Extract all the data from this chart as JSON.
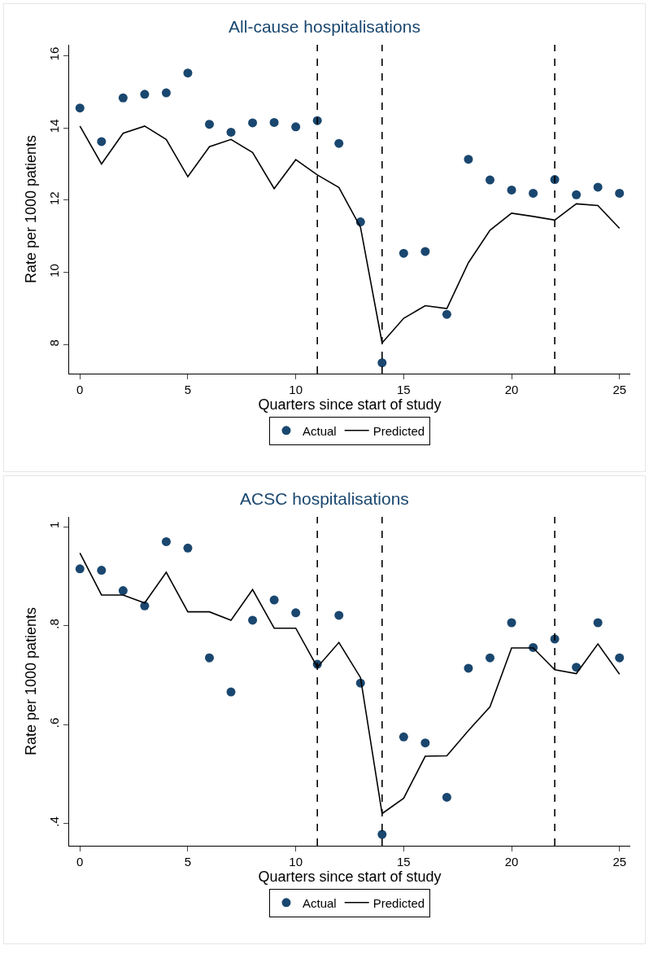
{
  "chart_data": [
    {
      "type": "scatter",
      "title": "All-cause hospitalisations",
      "xlabel": "Quarters since start of study",
      "ylabel": "Rate per 1000 patients",
      "x": [
        0,
        1,
        2,
        3,
        4,
        5,
        6,
        7,
        8,
        9,
        10,
        11,
        12,
        13,
        14,
        15,
        16,
        17,
        18,
        19,
        20,
        21,
        22,
        23,
        24,
        25
      ],
      "series": [
        {
          "name": "Actual",
          "color": "#1a476f",
          "values": [
            14.55,
            13.62,
            14.83,
            14.93,
            14.97,
            15.52,
            14.1,
            13.88,
            14.14,
            14.15,
            14.03,
            14.2,
            13.57,
            11.4,
            7.5,
            10.53,
            10.58,
            8.84,
            13.13,
            12.56,
            12.28,
            12.19,
            12.57,
            12.15,
            12.36,
            12.19
          ]
        },
        {
          "name": "Predicted",
          "type": "line",
          "color": "#000000",
          "marker": "none",
          "values": [
            14.05,
            13.0,
            13.85,
            14.05,
            13.68,
            12.65,
            13.48,
            13.68,
            13.32,
            12.32,
            13.12,
            12.7,
            12.35,
            11.25,
            8.05,
            8.73,
            9.08,
            9.0,
            10.27,
            11.17,
            11.64,
            11.55,
            11.45,
            11.9,
            11.85,
            11.22
          ]
        }
      ],
      "xlim": [
        -0.5,
        25.5
      ],
      "xticks": [
        0,
        5,
        10,
        15,
        20,
        25
      ],
      "ylim": [
        7.2,
        16.3
      ],
      "yticks": [
        8,
        10,
        12,
        14,
        16
      ],
      "ref_lines": [
        {
          "axis": "x",
          "value": 11,
          "color": "#000000",
          "line_style": "dashed"
        },
        {
          "axis": "x",
          "value": 14,
          "color": "#000000",
          "line_style": "dashed"
        },
        {
          "axis": "x",
          "value": 22,
          "color": "#000000",
          "line_style": "dashed"
        }
      ],
      "grid": false,
      "legend": "bottom",
      "marker": "circle"
    },
    {
      "type": "scatter",
      "title": "ACSC hospitalisations",
      "xlabel": "Quarters since start of study",
      "ylabel": "Rate per 1000 patients",
      "x": [
        0,
        1,
        2,
        3,
        4,
        5,
        6,
        7,
        8,
        9,
        10,
        11,
        12,
        13,
        14,
        15,
        16,
        17,
        18,
        19,
        20,
        21,
        22,
        23,
        24,
        25
      ],
      "series": [
        {
          "name": "Actual",
          "color": "#1a476f",
          "values": [
            0.915,
            0.912,
            0.871,
            0.84,
            0.97,
            0.957,
            0.735,
            0.666,
            0.811,
            0.852,
            0.826,
            0.722,
            0.821,
            0.684,
            0.378,
            0.575,
            0.563,
            0.453,
            0.714,
            0.735,
            0.806,
            0.756,
            0.773,
            0.716,
            0.806,
            0.735
          ]
        },
        {
          "name": "Predicted",
          "type": "line",
          "color": "#000000",
          "marker": "none",
          "values": [
            0.947,
            0.862,
            0.862,
            0.846,
            0.908,
            0.828,
            0.828,
            0.811,
            0.873,
            0.795,
            0.795,
            0.716,
            0.766,
            0.695,
            0.42,
            0.451,
            0.536,
            0.537,
            0.588,
            0.636,
            0.755,
            0.755,
            0.711,
            0.703,
            0.763,
            0.702
          ]
        }
      ],
      "xlim": [
        -0.5,
        25.5
      ],
      "xticks": [
        0,
        5,
        10,
        15,
        20,
        25
      ],
      "ylim": [
        0.355,
        1.02
      ],
      "yticks": [
        {
          "value": 0.4,
          "label": ".4"
        },
        {
          "value": 0.6,
          "label": ".6"
        },
        {
          "value": 0.8,
          "label": ".8"
        },
        {
          "value": 1,
          "label": "1"
        }
      ],
      "ref_lines": [
        {
          "axis": "x",
          "value": 11,
          "color": "#000000",
          "line_style": "dashed"
        },
        {
          "axis": "x",
          "value": 14,
          "color": "#000000",
          "line_style": "dashed"
        },
        {
          "axis": "x",
          "value": 22,
          "color": "#000000",
          "line_style": "dashed"
        }
      ],
      "grid": false,
      "legend": "bottom",
      "marker": "circle"
    }
  ]
}
